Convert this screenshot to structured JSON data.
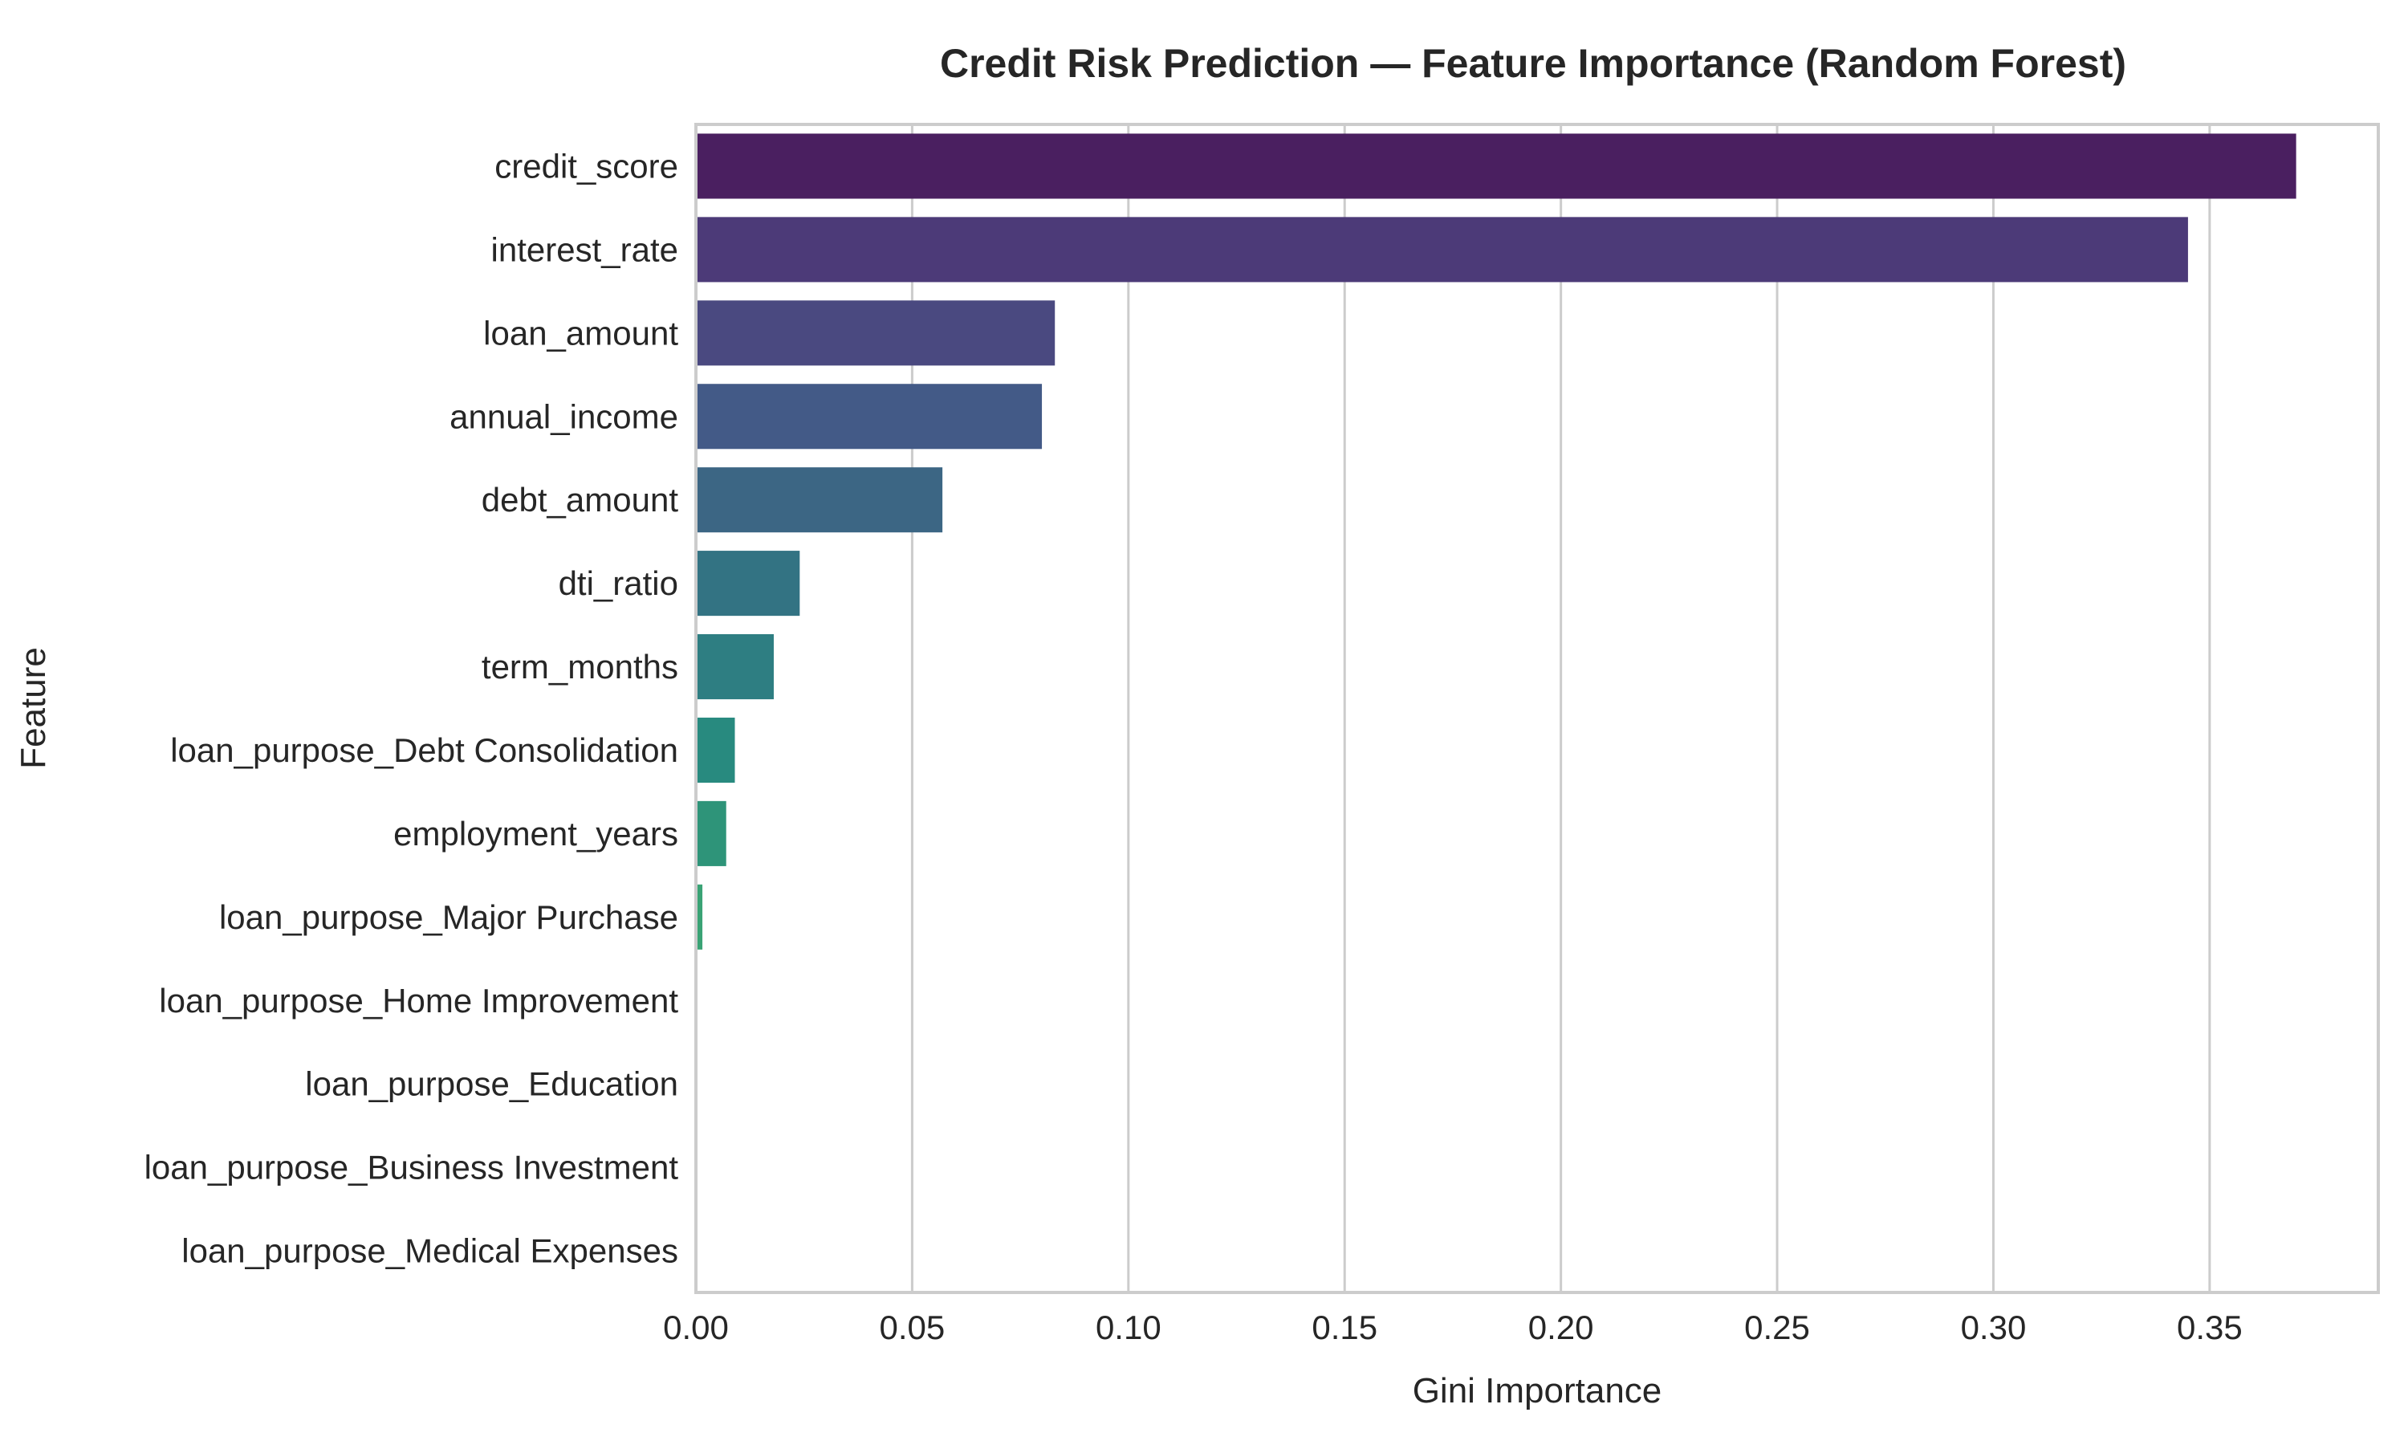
{
  "chart_data": {
    "type": "bar",
    "orientation": "horizontal",
    "title": "Credit Risk Prediction — Feature Importance (Random Forest)",
    "xlabel": "Gini Importance",
    "ylabel": "Feature",
    "xlim": [
      0,
      0.389
    ],
    "xticks": [
      0.0,
      0.05,
      0.1,
      0.15,
      0.2,
      0.25,
      0.3,
      0.35
    ],
    "xtick_labels": [
      "0.00",
      "0.05",
      "0.10",
      "0.15",
      "0.20",
      "0.25",
      "0.30",
      "0.35"
    ],
    "grid": "vertical",
    "legend": "none",
    "categories": [
      "credit_score",
      "interest_rate",
      "loan_amount",
      "annual_income",
      "debt_amount",
      "dti_ratio",
      "term_months",
      "loan_purpose_Debt Consolidation",
      "employment_years",
      "loan_purpose_Major Purchase",
      "loan_purpose_Home Improvement",
      "loan_purpose_Education",
      "loan_purpose_Business Investment",
      "loan_purpose_Medical Expenses"
    ],
    "values": [
      0.37,
      0.345,
      0.083,
      0.08,
      0.057,
      0.024,
      0.018,
      0.009,
      0.007,
      0.0015,
      0.0,
      0.0,
      0.0,
      0.0
    ],
    "colors": [
      "#4a1f60",
      "#4c3a78",
      "#4a4980",
      "#435a87",
      "#3c6684",
      "#337383",
      "#2e7e82",
      "#288a7f",
      "#2e9479",
      "#3aa375",
      "#4aae6c",
      "#60ba61",
      "#7cc655",
      "#9ad04b"
    ]
  }
}
